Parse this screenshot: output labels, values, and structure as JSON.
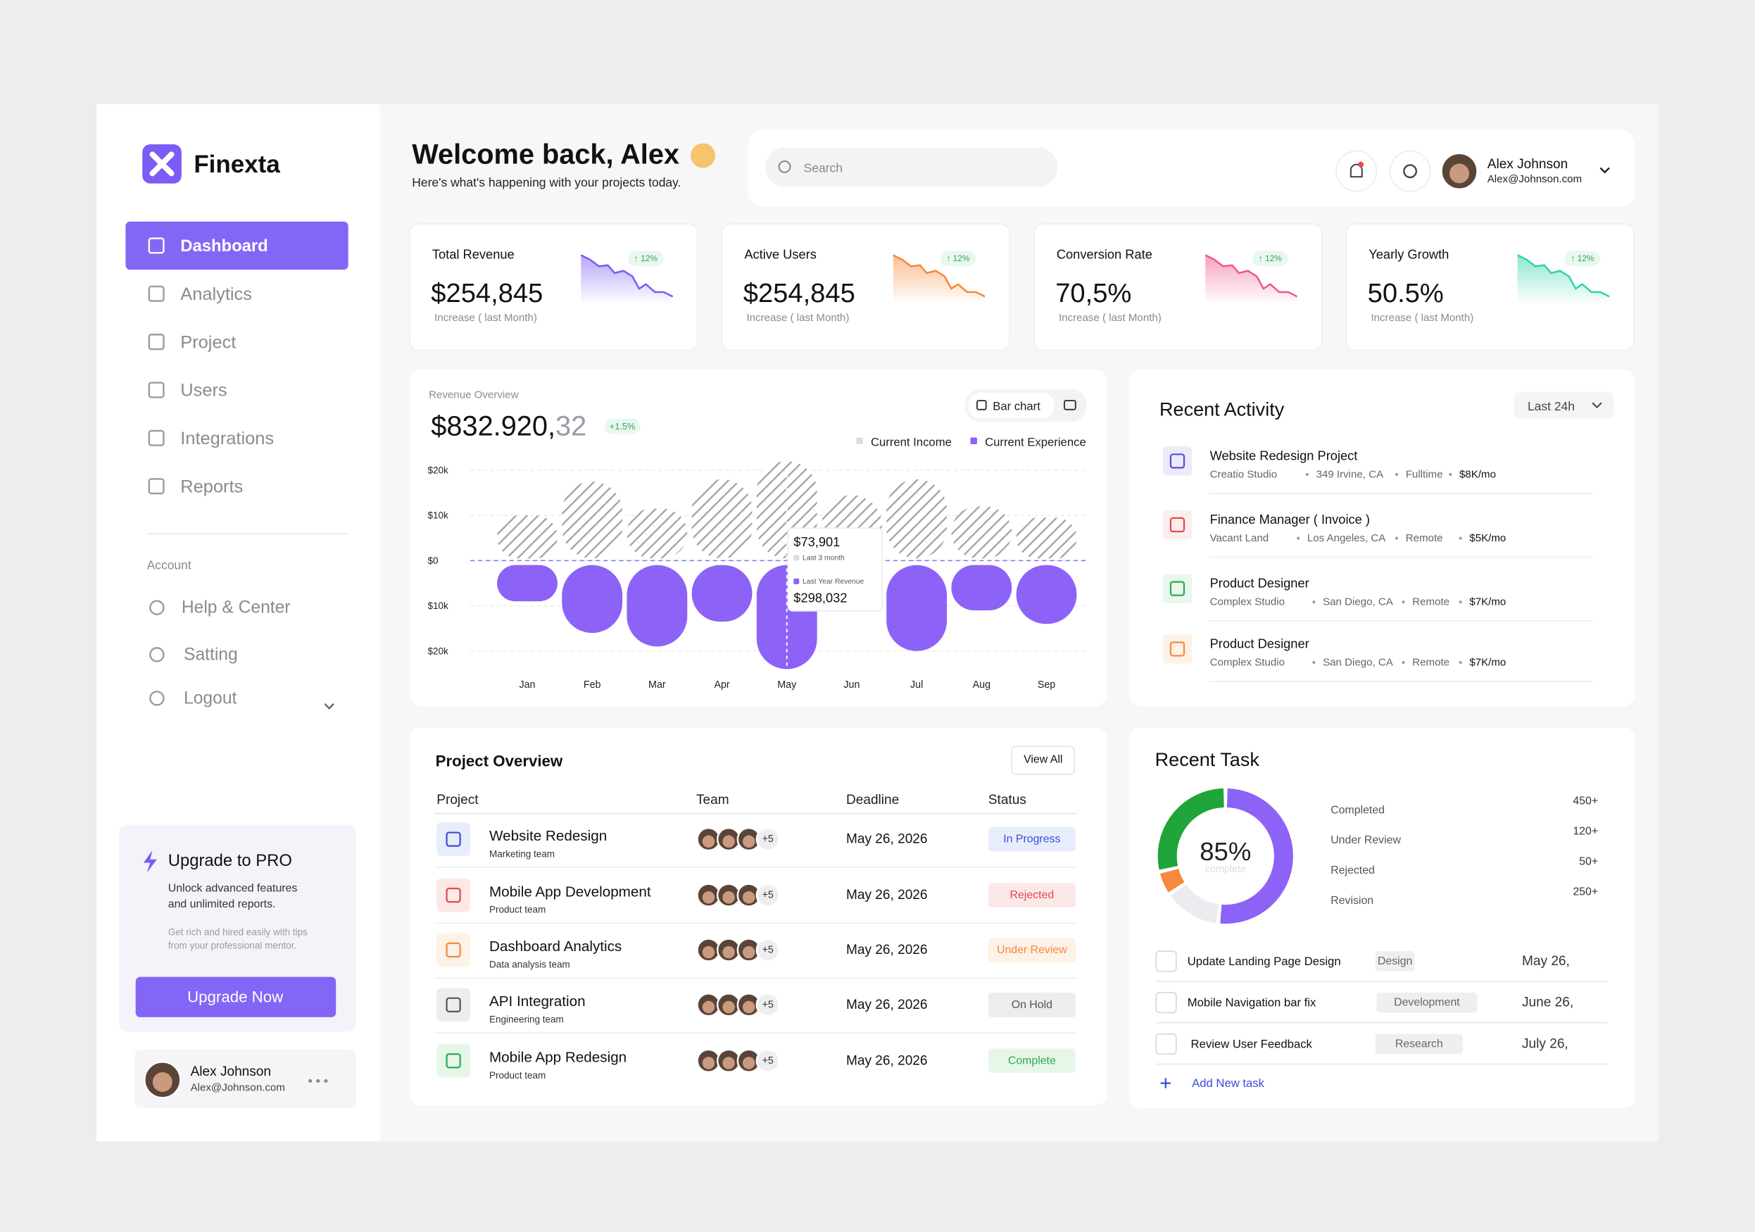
{
  "sidebar": {
    "brand": "Finexta",
    "nav": [
      "Dashboard",
      "Analytics",
      "Project",
      "Users",
      "Integrations",
      "Reports"
    ],
    "account_heading": "Account",
    "account_nav": [
      "Help & Center",
      "Satting",
      "Logout"
    ],
    "upgrade": {
      "title": "Upgrade to PRO",
      "text": [
        "Unlock advanced features",
        "and unlimited reports."
      ],
      "subtext": [
        "Get rich and hired easily with tips",
        "from your professional mentor."
      ],
      "button": "Upgrade Now"
    },
    "user": {
      "name": "Alex Johnson",
      "email": "Alex@Johnson.com"
    }
  },
  "header": {
    "title": "Welcome back, Alex",
    "subtitle": "Here's what's happening with your projects today.",
    "search_placeholder": "Search",
    "user": {
      "name": "Alex Johnson",
      "email": "Alex@Johnson.com"
    }
  },
  "stats": [
    {
      "label": "Total Revenue",
      "value": "$254,845",
      "change": "↑ 12%",
      "note": "Increase ( last Month)",
      "color": "#7c5cf5"
    },
    {
      "label": "Active Users",
      "value": "$254,845",
      "change": "↑ 12%",
      "note": "Increase ( last Month)",
      "color": "#f6893b"
    },
    {
      "label": "Conversion Rate",
      "value": "70,5%",
      "change": "↑ 12%",
      "note": "Increase ( last Month)",
      "color": "#f0558f"
    },
    {
      "label": "Yearly Growth",
      "value": "50.5%",
      "change": "↑ 12%",
      "note": "Increase ( last Month)",
      "color": "#2fd3a8"
    }
  ],
  "revenue_overview": {
    "label": "Revenue Overview",
    "total": "$832.920,",
    "total_decimals": "32",
    "change": "+1.5%",
    "button": "Bar chart"
  },
  "chart_data": [
    {
      "type": "bar",
      "title": "Revenue Overview",
      "categories": [
        "Jan",
        "Feb",
        "Mar",
        "Apr",
        "May",
        "Jun",
        "Jul",
        "Aug",
        "Sep"
      ],
      "series": [
        {
          "name": "Current Income",
          "color": "#a4a4ad",
          "values": [
            10,
            17.5,
            11.5,
            18,
            22,
            14.5,
            18,
            12,
            9.5
          ]
        },
        {
          "name": "Current Experience",
          "color": "#8d62f7",
          "values": [
            -9,
            -16,
            -19,
            -13.5,
            -24,
            null,
            -20,
            -11,
            -14
          ]
        }
      ],
      "ylim": [
        -25,
        25
      ],
      "yticks": [
        {
          "value": 20,
          "label": "$20k"
        },
        {
          "value": 10,
          "label": "$10k"
        },
        {
          "value": 0,
          "label": "$0"
        },
        {
          "value": -10,
          "label": "$10k"
        },
        {
          "value": -20,
          "label": "$20k"
        }
      ],
      "grid": true,
      "tooltip": {
        "value": "$73,901",
        "sub": "Last 3 month",
        "label": "Last Year Revenue",
        "value2": "$298,032"
      }
    },
    {
      "type": "pie",
      "title": "Recent Task",
      "center_label": "85%",
      "center_sub": "complete",
      "categories": [
        "Completed",
        "Under Review",
        "Rejected",
        "Revision"
      ],
      "values": [
        450,
        120,
        50,
        250
      ],
      "value_labels": [
        "450+",
        "120+",
        "50+",
        "250+"
      ],
      "colors": [
        "#8d62f7",
        "#ececf0",
        "#f6893b",
        "#1fa53a"
      ]
    }
  ],
  "recent_activity": {
    "title": "Recent Activity",
    "filter": "Last 24h",
    "items": [
      {
        "title": "Website Redesign Project",
        "company": "Creatio Studio",
        "location": "349 Irvine, CA",
        "type": "Fulltime",
        "salary": "$8K/mo",
        "color": "#5b4bdb",
        "bg": "#ecebfb"
      },
      {
        "title": "Finance Manager ( Invoice )",
        "company": "Vacant Land",
        "location": "Los Angeles, CA",
        "type": "Remote",
        "salary": "$5K/mo",
        "color": "#e5484d",
        "bg": "#fdeeee"
      },
      {
        "title": "Product Designer",
        "company": "Complex Studio",
        "location": "San Diego, CA",
        "type": "Remote",
        "salary": "$7K/mo",
        "color": "#2fa84f",
        "bg": "#e9f7ec"
      },
      {
        "title": "Product Designer",
        "company": "Complex Studio",
        "location": "San Diego, CA",
        "type": "Remote",
        "salary": "$7K/mo",
        "color": "#f6893b",
        "bg": "#fef1e6"
      }
    ]
  },
  "project_overview": {
    "title": "Project Overview",
    "view_all": "View All",
    "columns": [
      "Project",
      "Team",
      "Deadline",
      "Status"
    ],
    "rows": [
      {
        "name": "Website Redesign",
        "team": "Marketing team",
        "team_extra": "+5",
        "deadline": "May 26, 2026",
        "status": "In Progress",
        "color": "#3b4bdb",
        "bg": "#e8edfc"
      },
      {
        "name": "Mobile App Development",
        "team": "Product team",
        "team_extra": "+5",
        "deadline": "May 26, 2026",
        "status": "Rejected",
        "color": "#e5484d",
        "bg": "#fde8e8"
      },
      {
        "name": "Dashboard Analytics",
        "team": "Data analysis team",
        "team_extra": "+5",
        "deadline": "May 26, 2026",
        "status": "Under Review",
        "color": "#f6893b",
        "bg": "#fef1e6"
      },
      {
        "name": "API Integration",
        "team": "Engineering team",
        "team_extra": "+5",
        "deadline": "May 26, 2026",
        "status": "On Hold",
        "color": "#555560",
        "bg": "#ededee"
      },
      {
        "name": "Mobile App Redesign",
        "team": "Product team",
        "team_extra": "+5",
        "deadline": "May 26, 2026",
        "status": "Complete",
        "color": "#2fa84f",
        "bg": "#e6f7ea"
      }
    ]
  },
  "recent_task": {
    "tasks": [
      {
        "name": "Update Landing Page Design",
        "tag": "Design",
        "date": "May 26,"
      },
      {
        "name": "Mobile Navigation bar fix",
        "tag": "Development",
        "date": "June 26,"
      },
      {
        "name": "Review User Feedback",
        "tag": "Research",
        "date": "July 26,"
      }
    ],
    "add": "Add New task"
  }
}
